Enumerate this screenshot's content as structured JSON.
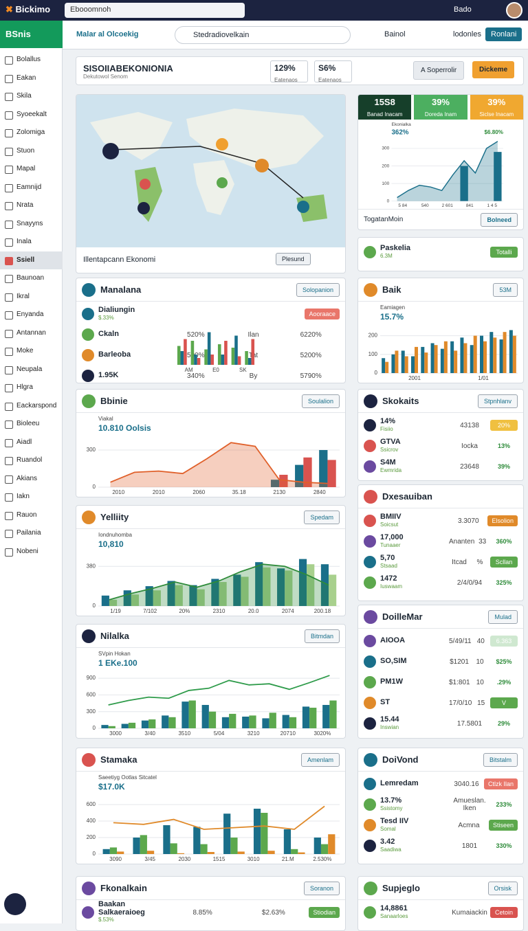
{
  "topbar": {
    "brand": "Bickimo",
    "search": "Ebooomnoh",
    "user": "Bado"
  },
  "sidebar": {
    "title": "BSnis",
    "active": 11,
    "items": [
      "Bolallus",
      "Eakan",
      "Skila",
      "Syoeekalt",
      "Zolomiga",
      "Stuon",
      "Mapal",
      "Eamnijd",
      "Nrata",
      "Snayyns",
      "Inala",
      "Ssiell",
      "Baunoan",
      "Ikral",
      "Enyanda",
      "Antannan",
      "Moke",
      "Neupala",
      "Hlgra",
      "Eackarspond",
      "Bioleeu",
      "Aiadl",
      "Ruandol",
      "Akians",
      "Iakn",
      "Rauon",
      "Pailania",
      "Nobeni"
    ]
  },
  "subbar": {
    "menu": "Malar al Olcoekig",
    "search": "Stedradiovelkain",
    "filter": "Bainol",
    "account": "lodonles",
    "button": "Ronlani"
  },
  "header": {
    "title": "SISOIIABEKONIONIA",
    "subtitle": "Dekutowol Senom",
    "stats": [
      {
        "value": "129%",
        "label": "Eatenaos"
      },
      {
        "value": "S6%",
        "label": "Eatenaos"
      }
    ],
    "button": "A Soperrolir",
    "cta": "Dickeme"
  },
  "map": {
    "caption": "Illentapcann Ekonomi",
    "button": "Plesund"
  },
  "panels": [
    {
      "title": "Manalana",
      "button": "Solopanion",
      "rows": [
        {
          "main": "Dialiungin",
          "sub": "$.33%",
          "badge": "Aooraace",
          "badgeColor": "#e9766a"
        },
        {
          "main": "Ckaln",
          "cols": [
            "520%",
            "Ilan",
            "6220%"
          ]
        },
        {
          "main": "Barleoba",
          "cols": [
            "500%",
            "Tat",
            "5200%"
          ]
        },
        {
          "main": "1.95K",
          "cols": [
            "340%",
            "By",
            "5790%"
          ]
        }
      ],
      "chart": {
        "ylim": [
          0,
          100
        ],
        "xlabels": [
          "AM",
          "E0",
          "SK"
        ],
        "bars": [
          {
            "color": "#5ca84d",
            "values": [
              55,
              70,
              45,
              60,
              50,
              40
            ]
          },
          {
            "color": "#1a6f8a",
            "values": [
              40,
              30,
              95,
              30,
              85,
              20
            ]
          },
          {
            "color": "#d9534f",
            "values": [
              75,
              20,
              30,
              70,
              25,
              75
            ]
          }
        ]
      }
    },
    {
      "title": "Bbinie",
      "button": "Soulalion",
      "chart": {
        "label": "Viakal",
        "value": "10.810 Oolsis",
        "ylim": [
          0,
          400
        ],
        "yticks": [
          0,
          300
        ],
        "area": true,
        "xlabels": [
          "2010",
          "2010",
          "2060",
          "35.18",
          "2130",
          "2840"
        ],
        "line": {
          "color": "#e0602a",
          "values": [
            40,
            120,
            130,
            110,
            230,
            360,
            330,
            60,
            40,
            30
          ]
        },
        "bars": [
          {
            "color": "#1a6f8a",
            "values": [
              0,
              0,
              0,
              0,
              0,
              0,
              0,
              60,
              180,
              300
            ]
          },
          {
            "color": "#d9534f",
            "values": [
              0,
              0,
              0,
              0,
              0,
              0,
              0,
              100,
              240,
              220
            ]
          }
        ]
      }
    },
    {
      "title": "Yelliity",
      "button": "Spedam",
      "chart": {
        "label": "Iondnuhomba",
        "value": "10,810",
        "ylim": [
          0,
          500
        ],
        "yticks": [
          0,
          380
        ],
        "area": true,
        "xlabels": [
          "1/19",
          "7/102",
          "20%",
          "2310",
          "20.0",
          "2074",
          "200.18"
        ],
        "line": {
          "color": "#2e8b3a",
          "values": [
            60,
            120,
            170,
            230,
            180,
            240,
            330,
            400,
            380,
            300,
            200
          ]
        },
        "bars": [
          {
            "color": "#1a6f8a",
            "values": [
              100,
              150,
              190,
              240,
              200,
              260,
              300,
              420,
              360,
              450,
              400
            ]
          },
          {
            "color": "#a8d08d",
            "values": [
              60,
              110,
              150,
              200,
              160,
              230,
              280,
              370,
              340,
              400,
              300
            ]
          }
        ]
      }
    },
    {
      "title": "Nilalka",
      "button": "Bitmdan",
      "chart": {
        "label": "SVpin Hokan",
        "value": "1 EKe.100",
        "ylim": [
          0,
          1000
        ],
        "yticks": [
          0,
          300,
          600,
          900
        ],
        "xlabels": [
          "3000",
          "3/40",
          "3510",
          "5/04",
          "3210",
          "20710",
          "3020%"
        ],
        "line": {
          "color": "#2e9b4a",
          "values": [
            420,
            500,
            560,
            540,
            680,
            720,
            860,
            780,
            800,
            700,
            820,
            950
          ]
        },
        "bars": [
          {
            "color": "#1a6f8a",
            "values": [
              60,
              80,
              140,
              230,
              480,
              420,
              200,
              210,
              180,
              240,
              390,
              420
            ]
          },
          {
            "color": "#5ca84d",
            "values": [
              40,
              100,
              160,
              200,
              500,
              300,
              260,
              230,
              280,
              200,
              370,
              500
            ]
          }
        ]
      }
    },
    {
      "title": "Stamaka",
      "button": "Amenlam",
      "chart": {
        "label": "Saeetiyg Ootlas Sitcatel",
        "value": "$17.0K",
        "ylim": [
          0,
          700
        ],
        "yticks": [
          0,
          200,
          400,
          600
        ],
        "xlabels": [
          "3090",
          "3/45",
          "2030",
          "1515",
          "3010",
          "21.M",
          "2.530%"
        ],
        "line": {
          "color": "#e08a2a",
          "values": [
            380,
            360,
            420,
            300,
            320,
            340,
            300,
            580
          ]
        },
        "bars": [
          {
            "color": "#1a6f8a",
            "values": [
              60,
              200,
              350,
              330,
              490,
              550,
              300,
              200
            ]
          },
          {
            "color": "#5ca84d",
            "values": [
              80,
              230,
              130,
              120,
              200,
              500,
              60,
              120
            ]
          },
          {
            "color": "#e08a2a",
            "values": [
              30,
              40,
              10,
              25,
              30,
              40,
              20,
              240
            ]
          }
        ]
      }
    },
    {
      "title": "Fkonalkain",
      "button": "Soranon",
      "rows": [
        {
          "main": "Baakan Salkaeraioeg",
          "sub": "$.53%",
          "cols": [
            "8.85%",
            "$2.63%"
          ],
          "badge": "Stiodian",
          "badgeColor": "#5ca84d"
        }
      ]
    },
    {
      "kpis": [
        {
          "value": "15S8",
          "label": "Banad Inacam",
          "color": "#163f2a"
        },
        {
          "value": "39%",
          "label": "Doreda Inam",
          "color": "#4caf60"
        },
        {
          "value": "39%",
          "label": "Siclse Inacam",
          "color": "#f0a830"
        }
      ],
      "chart": {
        "label": "Ekonialka",
        "value": "362%",
        "sub": "$6.80%",
        "ylim": [
          0,
          350
        ],
        "yticks": [
          0,
          100,
          200,
          300
        ],
        "area": true,
        "xlabels": [
          "5 84",
          "540",
          "2 601",
          "841",
          "1 4 5"
        ],
        "line": {
          "color": "#1a6f8a",
          "values": [
            20,
            60,
            90,
            80,
            60,
            150,
            230,
            160,
            300,
            340
          ]
        },
        "bars": [
          {
            "color": "#1a6f8a",
            "values": [
              0,
              0,
              0,
              0,
              0,
              0,
              200,
              0,
              0,
              280
            ]
          }
        ]
      },
      "footer": "TogatanMoin",
      "footerButton": "Bolneed"
    },
    {
      "rows": [
        {
          "main": "Paskelia",
          "sub": "6.3M",
          "badge": "Totalli",
          "badgeColor": "#5ca84d"
        }
      ]
    },
    {
      "title": "Baik",
      "button": "53M",
      "chart": {
        "label": "Eamiagen",
        "value": "15.7%",
        "ylim": [
          0,
          250
        ],
        "yticks": [
          0,
          100,
          200
        ],
        "xlabels": [
          "2001",
          "1/01"
        ],
        "bars": [
          {
            "color": "#1a6f8a",
            "values": [
              80,
              100,
              120,
              90,
              140,
              160,
              130,
              170,
              190,
              150,
              200,
              220,
              180,
              230
            ]
          },
          {
            "color": "#e08a2a",
            "values": [
              60,
              120,
              90,
              140,
              110,
              150,
              170,
              120,
              160,
              200,
              170,
              190,
              220,
              200
            ]
          }
        ]
      }
    },
    {
      "title": "Skokaits",
      "button": "Stpnhlanv",
      "rows": [
        {
          "main": "14%",
          "sub": "Fisiio",
          "cols": [
            "43138"
          ],
          "badge": "20%",
          "badgeColor": "#f0c040"
        },
        {
          "main": "GTVA",
          "sub": "Ssicrov",
          "cols": [
            "Iocka"
          ],
          "badge": "13%"
        },
        {
          "main": "S4M",
          "sub": "Ewmrida",
          "cols": [
            "23648"
          ],
          "badge": "39%"
        }
      ]
    },
    {
      "title": "Dxesauiban",
      "rows": [
        {
          "main": "BMIIV",
          "sub": "Soicsut",
          "cols": [
            "3.3070"
          ],
          "badge": "Elsolion",
          "badgeColor": "#e08a2a"
        },
        {
          "main": "17,000",
          "sub": "Tunaaer",
          "cols": [
            "Ananten",
            "33"
          ],
          "badge": "360%"
        },
        {
          "main": "5,70",
          "sub": "Stsaad",
          "cols": [
            "Itcad",
            "%"
          ],
          "badge": "Scllan",
          "badgeColor": "#5ca84d"
        },
        {
          "main": "1472",
          "sub": "Iuswaam",
          "cols": [
            "2/4/0/94"
          ],
          "badge": "325%"
        }
      ]
    },
    {
      "title": "DoilleMar",
      "button": "Mulad",
      "rows": [
        {
          "main": "AIOOA",
          "cols": [
            "5/49/11",
            "40"
          ],
          "badge": "6.363",
          "badgeColor": "#cfe8d0"
        },
        {
          "main": "SO,SIM",
          "cols": [
            "$1201",
            "10"
          ],
          "badge": "$25%"
        },
        {
          "main": "PM1W",
          "cols": [
            "$1:801",
            "10"
          ],
          "badge": ".29%"
        },
        {
          "main": "ST",
          "cols": [
            "17/0/10",
            "15"
          ],
          "badge": "V",
          "badgeColor": "#5ca84d"
        },
        {
          "main": "15.44",
          "sub": "Inswian",
          "cols": [
            "17.5801"
          ],
          "badge": "29%"
        }
      ]
    },
    {
      "title": "DoiVond",
      "button": "Bitstalm",
      "rows": [
        {
          "main": "Lemredam",
          "cols": [
            "3040.16"
          ],
          "badge": "Ctlzk Ilan",
          "badgeColor": "#e9766a"
        },
        {
          "main": "13.7%",
          "sub": "Ssistomy",
          "cols": [
            "Amueslan. Iken"
          ],
          "badge": "233%"
        },
        {
          "main": "Tesd IIV",
          "sub": "Somal",
          "cols": [
            "Acmna"
          ],
          "badge": "Stiseen",
          "badgeColor": "#5ca84d"
        },
        {
          "main": "3.42",
          "sub": "Saadiwa",
          "cols": [
            "1801"
          ],
          "badge": "330%"
        }
      ]
    },
    {
      "title": "Supjeglo",
      "button": "Orsisk",
      "rows": [
        {
          "main": "14,8861",
          "sub": "Sanaarloes",
          "cols": [
            "Kumaiackin"
          ],
          "badge": "Cetoin",
          "badgeColor": "#d9534f"
        }
      ]
    }
  ]
}
